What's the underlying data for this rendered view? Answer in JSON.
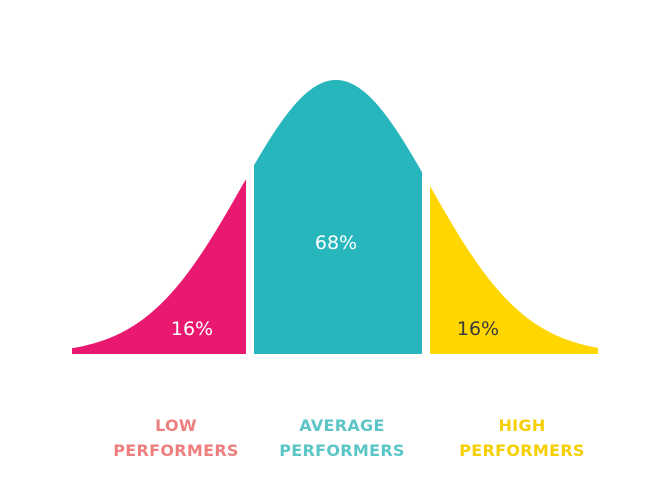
{
  "segments": [
    {
      "id": "low",
      "percent": "16%",
      "line1": "LOW",
      "line2": "PERFORMERS",
      "fill": "#E8196F",
      "label_color": "#EE7F7F",
      "percent_color": "#FFFFFF"
    },
    {
      "id": "average",
      "percent": "68%",
      "line1": "AVERAGE",
      "line2": "PERFORMERS",
      "fill": "#26B6BC",
      "label_color": "#5CC6C6",
      "percent_color": "#FFFFFF"
    },
    {
      "id": "high",
      "percent": "16%",
      "line1": "HIGH",
      "line2": "PERFORMERS",
      "fill": "#FFD600",
      "label_color": "#F5CF00",
      "percent_color": "#3A3A3A"
    }
  ]
}
